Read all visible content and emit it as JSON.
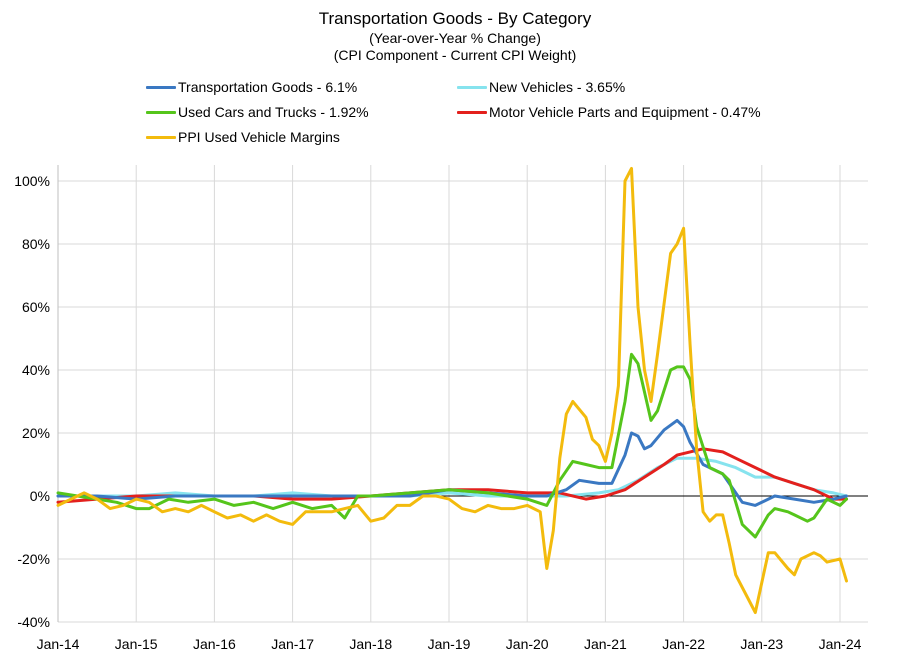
{
  "chart_data": {
    "type": "line",
    "title": "Transportation Goods - By Category",
    "subtitle_lines": [
      "(Year-over-Year % Change)",
      "(CPI Component - Current CPI Weight)"
    ],
    "xlabel": "",
    "ylabel": "",
    "x_ticks": [
      "Jan-14",
      "Jan-15",
      "Jan-16",
      "Jan-17",
      "Jan-18",
      "Jan-19",
      "Jan-20",
      "Jan-21",
      "Jan-22",
      "Jan-23",
      "Jan-24"
    ],
    "y_ticks": [
      "100%",
      "80%",
      "60%",
      "40%",
      "20%",
      "0%",
      "-20%",
      "-40%"
    ],
    "y_tick_values": [
      100,
      80,
      60,
      40,
      20,
      0,
      -20,
      -40
    ],
    "ylim": [
      -40,
      100
    ],
    "xlim": [
      "2014-01",
      "2024-06"
    ],
    "grid": "vertical and horizontal, light gray",
    "legend_placement": "top",
    "series": [
      {
        "name": "Transportation Goods - 6.1%",
        "color": "#3a78c2",
        "points": [
          [
            "2014-01",
            0
          ],
          [
            "2014-07",
            0
          ],
          [
            "2015-01",
            -1
          ],
          [
            "2015-07",
            0
          ],
          [
            "2016-01",
            0
          ],
          [
            "2016-07",
            0
          ],
          [
            "2017-01",
            0
          ],
          [
            "2017-07",
            0
          ],
          [
            "2018-01",
            0
          ],
          [
            "2018-07",
            0
          ],
          [
            "2019-01",
            2
          ],
          [
            "2019-07",
            1
          ],
          [
            "2020-01",
            0
          ],
          [
            "2020-04",
            0
          ],
          [
            "2020-07",
            2
          ],
          [
            "2020-09",
            5
          ],
          [
            "2020-12",
            4
          ],
          [
            "2021-02",
            4
          ],
          [
            "2021-04",
            13
          ],
          [
            "2021-05",
            20
          ],
          [
            "2021-06",
            19
          ],
          [
            "2021-07",
            15
          ],
          [
            "2021-08",
            16
          ],
          [
            "2021-10",
            21
          ],
          [
            "2021-12",
            24
          ],
          [
            "2022-01",
            22
          ],
          [
            "2022-02",
            17
          ],
          [
            "2022-04",
            10
          ],
          [
            "2022-07",
            7
          ],
          [
            "2022-10",
            -2
          ],
          [
            "2022-12",
            -3
          ],
          [
            "2023-03",
            0
          ],
          [
            "2023-06",
            -1
          ],
          [
            "2023-09",
            -2
          ],
          [
            "2023-12",
            -1
          ],
          [
            "2024-02",
            0
          ]
        ]
      },
      {
        "name": "New Vehicles - 3.65%",
        "color": "#86e3ee",
        "points": [
          [
            "2014-01",
            0
          ],
          [
            "2015-01",
            0
          ],
          [
            "2015-07",
            1
          ],
          [
            "2016-01",
            0
          ],
          [
            "2016-07",
            0
          ],
          [
            "2017-01",
            1
          ],
          [
            "2017-07",
            0
          ],
          [
            "2018-01",
            0
          ],
          [
            "2018-07",
            0
          ],
          [
            "2019-01",
            1
          ],
          [
            "2019-07",
            0
          ],
          [
            "2020-01",
            0
          ],
          [
            "2020-04",
            0
          ],
          [
            "2020-07",
            0
          ],
          [
            "2020-12",
            1
          ],
          [
            "2021-03",
            2
          ],
          [
            "2021-06",
            5
          ],
          [
            "2021-09",
            9
          ],
          [
            "2021-12",
            12
          ],
          [
            "2022-03",
            12
          ],
          [
            "2022-06",
            11
          ],
          [
            "2022-09",
            9
          ],
          [
            "2022-12",
            6
          ],
          [
            "2023-03",
            6
          ],
          [
            "2023-06",
            4
          ],
          [
            "2023-09",
            2
          ],
          [
            "2023-12",
            1
          ],
          [
            "2024-02",
            0
          ]
        ]
      },
      {
        "name": "Used Cars and Trucks - 1.92%",
        "color": "#55c51b",
        "points": [
          [
            "2014-01",
            1
          ],
          [
            "2014-04",
            0
          ],
          [
            "2014-07",
            -1
          ],
          [
            "2014-10",
            -2
          ],
          [
            "2015-01",
            -4
          ],
          [
            "2015-03",
            -4
          ],
          [
            "2015-06",
            -1
          ],
          [
            "2015-09",
            -2
          ],
          [
            "2016-01",
            -1
          ],
          [
            "2016-04",
            -3
          ],
          [
            "2016-07",
            -2
          ],
          [
            "2016-10",
            -4
          ],
          [
            "2017-01",
            -2
          ],
          [
            "2017-04",
            -4
          ],
          [
            "2017-07",
            -3
          ],
          [
            "2017-09",
            -7
          ],
          [
            "2017-11",
            0
          ],
          [
            "2018-01",
            0
          ],
          [
            "2018-07",
            1
          ],
          [
            "2019-01",
            2
          ],
          [
            "2019-07",
            1
          ],
          [
            "2020-01",
            -1
          ],
          [
            "2020-04",
            -3
          ],
          [
            "2020-06",
            5
          ],
          [
            "2020-08",
            11
          ],
          [
            "2020-10",
            10
          ],
          [
            "2020-12",
            9
          ],
          [
            "2021-02",
            9
          ],
          [
            "2021-04",
            30
          ],
          [
            "2021-05",
            45
          ],
          [
            "2021-06",
            42
          ],
          [
            "2021-08",
            24
          ],
          [
            "2021-09",
            27
          ],
          [
            "2021-11",
            40
          ],
          [
            "2021-12",
            41
          ],
          [
            "2022-01",
            41
          ],
          [
            "2022-02",
            37
          ],
          [
            "2022-03",
            22
          ],
          [
            "2022-05",
            9
          ],
          [
            "2022-07",
            7
          ],
          [
            "2022-08",
            5
          ],
          [
            "2022-10",
            -9
          ],
          [
            "2022-12",
            -13
          ],
          [
            "2023-02",
            -6
          ],
          [
            "2023-03",
            -4
          ],
          [
            "2023-05",
            -5
          ],
          [
            "2023-06",
            -6
          ],
          [
            "2023-08",
            -8
          ],
          [
            "2023-09",
            -7
          ],
          [
            "2023-11",
            -1
          ],
          [
            "2024-01",
            -3
          ],
          [
            "2024-02",
            -1
          ]
        ]
      },
      {
        "name": "Motor Vehicle Parts and Equipment - 0.47%",
        "color": "#e3201d",
        "points": [
          [
            "2014-01",
            -2
          ],
          [
            "2014-07",
            -1
          ],
          [
            "2015-01",
            0
          ],
          [
            "2015-07",
            0
          ],
          [
            "2016-01",
            0
          ],
          [
            "2016-07",
            0
          ],
          [
            "2017-01",
            -1
          ],
          [
            "2017-07",
            -1
          ],
          [
            "2018-01",
            0
          ],
          [
            "2018-07",
            1
          ],
          [
            "2019-01",
            2
          ],
          [
            "2019-07",
            2
          ],
          [
            "2020-01",
            1
          ],
          [
            "2020-06",
            1
          ],
          [
            "2020-10",
            -1
          ],
          [
            "2021-01",
            0
          ],
          [
            "2021-04",
            2
          ],
          [
            "2021-07",
            6
          ],
          [
            "2021-10",
            10
          ],
          [
            "2021-12",
            13
          ],
          [
            "2022-02",
            14
          ],
          [
            "2022-04",
            15
          ],
          [
            "2022-07",
            14
          ],
          [
            "2022-09",
            12
          ],
          [
            "2022-12",
            9
          ],
          [
            "2023-03",
            6
          ],
          [
            "2023-06",
            4
          ],
          [
            "2023-09",
            2
          ],
          [
            "2023-12",
            -1
          ],
          [
            "2024-02",
            -1
          ]
        ]
      },
      {
        "name": "PPI Used Vehicle Margins",
        "color": "#f3bb0d",
        "points": [
          [
            "2014-01",
            -3
          ],
          [
            "2014-03",
            -1
          ],
          [
            "2014-05",
            1
          ],
          [
            "2014-07",
            -1
          ],
          [
            "2014-09",
            -4
          ],
          [
            "2014-11",
            -3
          ],
          [
            "2015-01",
            -1
          ],
          [
            "2015-03",
            -2
          ],
          [
            "2015-05",
            -5
          ],
          [
            "2015-07",
            -4
          ],
          [
            "2015-09",
            -5
          ],
          [
            "2015-11",
            -3
          ],
          [
            "2016-01",
            -5
          ],
          [
            "2016-03",
            -7
          ],
          [
            "2016-05",
            -6
          ],
          [
            "2016-07",
            -8
          ],
          [
            "2016-09",
            -6
          ],
          [
            "2016-11",
            -8
          ],
          [
            "2017-01",
            -9
          ],
          [
            "2017-03",
            -5
          ],
          [
            "2017-05",
            -5
          ],
          [
            "2017-07",
            -5
          ],
          [
            "2017-09",
            -4
          ],
          [
            "2017-11",
            -3
          ],
          [
            "2018-01",
            -8
          ],
          [
            "2018-03",
            -7
          ],
          [
            "2018-05",
            -3
          ],
          [
            "2018-07",
            -3
          ],
          [
            "2018-09",
            0
          ],
          [
            "2018-11",
            0
          ],
          [
            "2019-01",
            -1
          ],
          [
            "2019-03",
            -4
          ],
          [
            "2019-05",
            -5
          ],
          [
            "2019-07",
            -3
          ],
          [
            "2019-09",
            -4
          ],
          [
            "2019-11",
            -4
          ],
          [
            "2020-01",
            -3
          ],
          [
            "2020-03",
            -5
          ],
          [
            "2020-04",
            -23
          ],
          [
            "2020-05",
            -11
          ],
          [
            "2020-06",
            12
          ],
          [
            "2020-07",
            26
          ],
          [
            "2020-08",
            30
          ],
          [
            "2020-10",
            25
          ],
          [
            "2020-11",
            18
          ],
          [
            "2020-12",
            16
          ],
          [
            "2021-01",
            11
          ],
          [
            "2021-02",
            20
          ],
          [
            "2021-03",
            35
          ],
          [
            "2021-04",
            100
          ],
          [
            "2021-05",
            104
          ],
          [
            "2021-06",
            60
          ],
          [
            "2021-07",
            40
          ],
          [
            "2021-08",
            30
          ],
          [
            "2021-09",
            45
          ],
          [
            "2021-11",
            77
          ],
          [
            "2021-12",
            80
          ],
          [
            "2022-01",
            85
          ],
          [
            "2022-02",
            48
          ],
          [
            "2022-03",
            15
          ],
          [
            "2022-04",
            -5
          ],
          [
            "2022-05",
            -8
          ],
          [
            "2022-06",
            -6
          ],
          [
            "2022-07",
            -6
          ],
          [
            "2022-08",
            -15
          ],
          [
            "2022-09",
            -25
          ],
          [
            "2022-11",
            -33
          ],
          [
            "2022-12",
            -37
          ],
          [
            "2023-02",
            -18
          ],
          [
            "2023-03",
            -18
          ],
          [
            "2023-05",
            -23
          ],
          [
            "2023-06",
            -25
          ],
          [
            "2023-07",
            -20
          ],
          [
            "2023-09",
            -18
          ],
          [
            "2023-10",
            -19
          ],
          [
            "2023-11",
            -21
          ],
          [
            "2024-01",
            -20
          ],
          [
            "2024-02",
            -27
          ]
        ]
      }
    ]
  }
}
